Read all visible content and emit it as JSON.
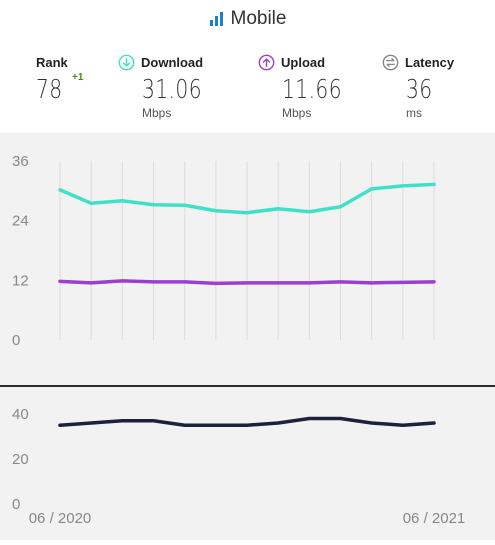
{
  "header": {
    "title": "Mobile"
  },
  "stats": {
    "rank": {
      "label": "Rank",
      "value": "78",
      "change": "+1"
    },
    "download": {
      "label": "Download",
      "value": "31.06",
      "unit": "Mbps"
    },
    "upload": {
      "label": "Upload",
      "value": "11.66",
      "unit": "Mbps"
    },
    "latency": {
      "label": "Latency",
      "value": "36",
      "unit": "ms"
    }
  },
  "colors": {
    "download": "#40e0c8",
    "upload": "#9b3fcf",
    "latency": "#1c2238",
    "signal_icon": "#1e7fd0",
    "grid": "#dcdcdc",
    "tick_text": "#888888"
  },
  "icons": {
    "network": "signal-bars-icon",
    "download": "arrow-down-circle-icon",
    "upload": "arrow-up-circle-icon",
    "latency": "exchange-arrows-circle-icon"
  },
  "chart_data": [
    {
      "type": "line",
      "title": "",
      "xlabel": "",
      "ylabel": "",
      "x": [
        "06/2020",
        "07/2020",
        "08/2020",
        "09/2020",
        "10/2020",
        "11/2020",
        "12/2020",
        "01/2021",
        "02/2021",
        "03/2021",
        "04/2021",
        "05/2021",
        "06/2021"
      ],
      "yticks": [
        "0",
        "12",
        "24",
        "36"
      ],
      "ylim": [
        0,
        36
      ],
      "grid": true,
      "series": [
        {
          "key": "download",
          "values": [
            30.2,
            27.5,
            28.0,
            27.2,
            27.1,
            26.0,
            25.6,
            26.4,
            25.8,
            26.8,
            30.4,
            31.0,
            31.3
          ]
        },
        {
          "key": "upload",
          "values": [
            11.8,
            11.5,
            11.9,
            11.7,
            11.7,
            11.4,
            11.5,
            11.5,
            11.5,
            11.7,
            11.5,
            11.6,
            11.7
          ]
        }
      ]
    },
    {
      "type": "line",
      "title": "",
      "xlabel": "",
      "ylabel": "",
      "x": [
        "06/2020",
        "07/2020",
        "08/2020",
        "09/2020",
        "10/2020",
        "11/2020",
        "12/2020",
        "01/2021",
        "02/2021",
        "03/2021",
        "04/2021",
        "05/2021",
        "06/2021"
      ],
      "xticks": [
        "06 / 2020",
        "06 / 2021"
      ],
      "yticks": [
        "0",
        "20",
        "40"
      ],
      "ylim": [
        0,
        40
      ],
      "grid": false,
      "series": [
        {
          "key": "latency",
          "values": [
            35,
            36,
            37,
            37,
            35,
            35,
            35,
            36,
            38,
            38,
            36,
            35,
            36
          ]
        }
      ]
    }
  ]
}
